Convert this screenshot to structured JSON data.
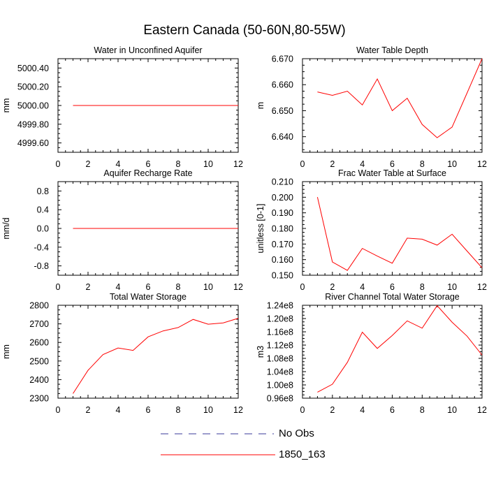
{
  "title": "Eastern Canada (50-60N,80-55W)",
  "chart_data": [
    {
      "type": "line",
      "title": "Water in Unconfined Aquifer",
      "xlabel": "",
      "ylabel": "mm",
      "xlim": [
        0,
        12
      ],
      "ylim": [
        4999.5,
        5000.5
      ],
      "xticks": [
        0,
        2,
        4,
        6,
        8,
        10,
        12
      ],
      "yticks": [
        4999.6,
        4999.8,
        5000.0,
        5000.2,
        5000.4
      ],
      "ytick_labels": [
        "4999.60",
        "4999.80",
        "5000.00",
        "5000.20",
        "5000.40"
      ],
      "series": [
        {
          "name": "1850_163",
          "x": [
            1,
            2,
            3,
            4,
            5,
            6,
            7,
            8,
            9,
            10,
            11,
            12
          ],
          "values": [
            5000,
            5000,
            5000,
            5000,
            5000,
            5000,
            5000,
            5000,
            5000,
            5000,
            5000,
            5000
          ]
        }
      ]
    },
    {
      "type": "line",
      "title": "Water Table Depth",
      "xlabel": "",
      "ylabel": "m",
      "xlim": [
        0,
        12
      ],
      "ylim": [
        6.634,
        6.67
      ],
      "xticks": [
        0,
        2,
        4,
        6,
        8,
        10,
        12
      ],
      "yticks": [
        6.64,
        6.65,
        6.66,
        6.67
      ],
      "ytick_labels": [
        "6.640",
        "6.650",
        "6.660",
        "6.670"
      ],
      "series": [
        {
          "name": "1850_163",
          "x": [
            1,
            2,
            3,
            4,
            5,
            6,
            7,
            8,
            9,
            10,
            11,
            12
          ],
          "values": [
            6.6572,
            6.6559,
            6.6575,
            6.6522,
            6.6622,
            6.65,
            6.6548,
            6.6447,
            6.6396,
            6.6437,
            6.6568,
            6.67
          ]
        }
      ]
    },
    {
      "type": "line",
      "title": "Aquifer Recharge Rate",
      "xlabel": "",
      "ylabel": "mm/d",
      "xlim": [
        0,
        12
      ],
      "ylim": [
        -1.0,
        1.0
      ],
      "xticks": [
        0,
        2,
        4,
        6,
        8,
        10,
        12
      ],
      "yticks": [
        -0.8,
        -0.4,
        0.0,
        0.4,
        0.8
      ],
      "ytick_labels": [
        "-0.8",
        "-0.4",
        "0.0",
        "0.4",
        "0.8"
      ],
      "series": [
        {
          "name": "1850_163",
          "x": [
            1,
            2,
            3,
            4,
            5,
            6,
            7,
            8,
            9,
            10,
            11,
            12
          ],
          "values": [
            0,
            0,
            0,
            0,
            0,
            0,
            0,
            0,
            0,
            0,
            0,
            0
          ]
        }
      ]
    },
    {
      "type": "line",
      "title": "Frac Water Table at Surface",
      "xlabel": "",
      "ylabel": "unitless [0-1]",
      "xlim": [
        0,
        12
      ],
      "ylim": [
        0.15,
        0.21
      ],
      "xticks": [
        0,
        2,
        4,
        6,
        8,
        10,
        12
      ],
      "yticks": [
        0.15,
        0.16,
        0.17,
        0.18,
        0.19,
        0.2,
        0.21
      ],
      "ytick_labels": [
        "0.150",
        "0.160",
        "0.170",
        "0.180",
        "0.190",
        "0.200",
        "0.210"
      ],
      "series": [
        {
          "name": "1850_163",
          "x": [
            1,
            2,
            3,
            4,
            5,
            6,
            7,
            8,
            9,
            10,
            11,
            12
          ],
          "values": [
            0.2001,
            0.1585,
            0.1531,
            0.1672,
            0.1623,
            0.1577,
            0.1738,
            0.1731,
            0.1693,
            0.1763,
            0.1655,
            0.1548
          ]
        }
      ]
    },
    {
      "type": "line",
      "title": "Total Water Storage",
      "xlabel": "",
      "ylabel": "mm",
      "xlim": [
        0,
        12
      ],
      "ylim": [
        2300,
        2800
      ],
      "xticks": [
        0,
        2,
        4,
        6,
        8,
        10,
        12
      ],
      "yticks": [
        2300,
        2400,
        2500,
        2600,
        2700,
        2800
      ],
      "ytick_labels": [
        "2300",
        "2400",
        "2500",
        "2600",
        "2700",
        "2800"
      ],
      "series": [
        {
          "name": "1850_163",
          "x": [
            1,
            2,
            3,
            4,
            5,
            6,
            7,
            8,
            9,
            10,
            11,
            12
          ],
          "values": [
            2325,
            2450,
            2535,
            2570,
            2557,
            2630,
            2662,
            2680,
            2724,
            2698,
            2705,
            2730
          ]
        }
      ]
    },
    {
      "type": "line",
      "title": "River Channel Total Water Storage",
      "xlabel": "",
      "ylabel": "m3",
      "xlim": [
        0,
        12
      ],
      "ylim": [
        96000000,
        124000000
      ],
      "xticks": [
        0,
        2,
        4,
        6,
        8,
        10,
        12
      ],
      "yticks": [
        96000000,
        100000000,
        104000000,
        108000000,
        112000000,
        116000000,
        120000000,
        124000000
      ],
      "ytick_labels": [
        "0.96e8",
        "1.00e8",
        "1.04e8",
        "1.08e8",
        "1.12e8",
        "1.16e8",
        "1.20e8",
        "1.24e8"
      ],
      "series": [
        {
          "name": "1850_163",
          "x": [
            1,
            2,
            3,
            4,
            5,
            6,
            7,
            8,
            9,
            10,
            11,
            12
          ],
          "values": [
            97800000,
            100200000,
            106800000,
            115900000,
            111000000,
            114900000,
            119300000,
            117100000,
            123900000,
            118900000,
            114700000,
            109000000
          ]
        }
      ]
    }
  ],
  "legend": {
    "placement": "bottom-center",
    "entries": [
      {
        "label": "No Obs",
        "color": "#3a3a9a",
        "style": "dashed"
      },
      {
        "label": "1850_163",
        "color": "#ff0000",
        "style": "solid"
      }
    ]
  }
}
